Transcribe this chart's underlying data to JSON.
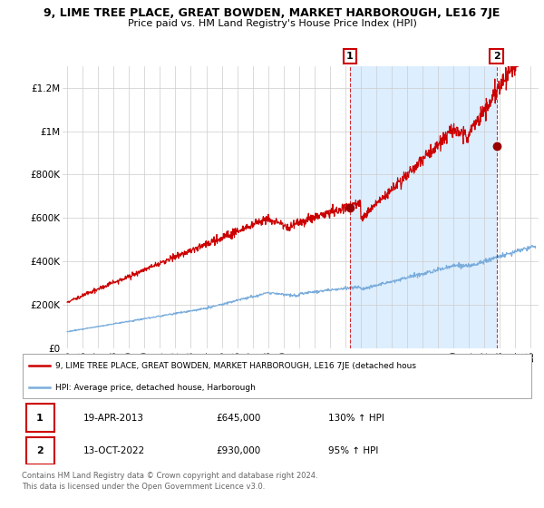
{
  "title": "9, LIME TREE PLACE, GREAT BOWDEN, MARKET HARBOROUGH, LE16 7JE",
  "subtitle": "Price paid vs. HM Land Registry's House Price Index (HPI)",
  "ylim": [
    0,
    1300000
  ],
  "yticks": [
    0,
    200000,
    400000,
    600000,
    800000,
    1000000,
    1200000
  ],
  "ytick_labels": [
    "£0",
    "£200K",
    "£400K",
    "£600K",
    "£800K",
    "£1M",
    "£1.2M"
  ],
  "xstart_year": 1995,
  "xend_year": 2025,
  "red_line_color": "#cc0000",
  "blue_line_color": "#7aaddc",
  "shade_color": "#ddeeff",
  "marker_color": "#990000",
  "sale1_year": 2013.3,
  "sale1_price": 645000,
  "sale1_label": "1",
  "sale1_date": "19-APR-2013",
  "sale1_hpi": "130% ↑ HPI",
  "sale2_year": 2022.78,
  "sale2_price": 930000,
  "sale2_label": "2",
  "sale2_date": "13-OCT-2022",
  "sale2_hpi": "95% ↑ HPI",
  "legend_red_label": "9, LIME TREE PLACE, GREAT BOWDEN, MARKET HARBOROUGH, LE16 7JE (detached hous",
  "legend_blue_label": "HPI: Average price, detached house, Harborough",
  "footer1": "Contains HM Land Registry data © Crown copyright and database right 2024.",
  "footer2": "This data is licensed under the Open Government Licence v3.0.",
  "bg_color": "#ffffff",
  "plot_bg_color": "#ffffff",
  "grid_color": "#cccccc",
  "annotation_box_color": "#cc0000"
}
